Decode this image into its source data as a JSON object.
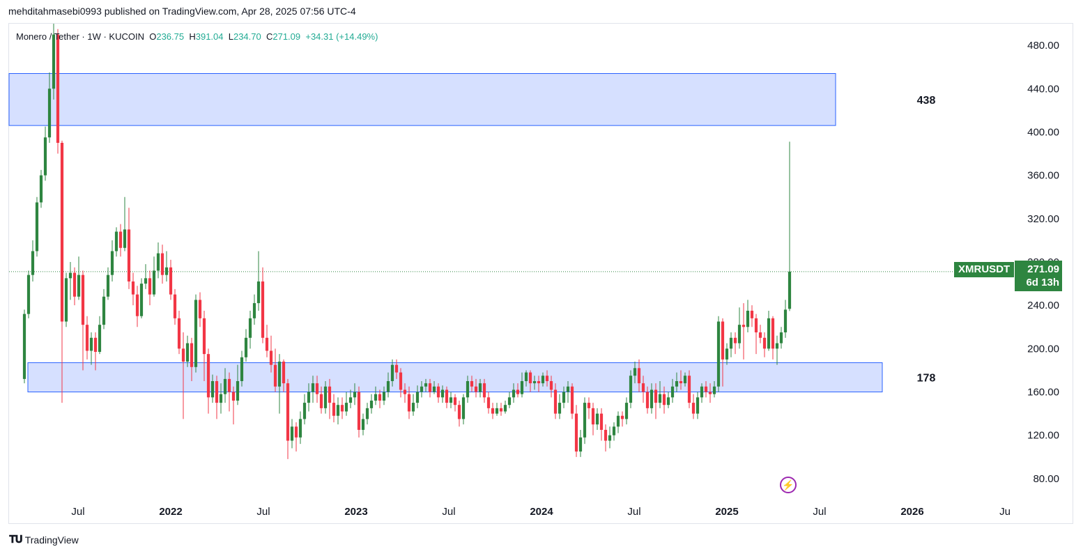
{
  "header": {
    "published": "mehditahmasebi0993 published on TradingView.com, Apr 28, 2025 07:56 UTC-4"
  },
  "legend": {
    "title": "Monero / Tether · 1W · KUCOIN",
    "o_label": "O",
    "o_value": "236.75",
    "h_label": "H",
    "h_value": "391.04",
    "l_label": "L",
    "l_value": "234.70",
    "c_label": "C",
    "c_value": "271.09",
    "change": "+34.31 (+14.49%)"
  },
  "price_tag": {
    "symbol": "XMRUSDT",
    "price": "271.09",
    "countdown": "6d 13h"
  },
  "footer": {
    "brand": "TradingView",
    "logo": "tv-logo-icon"
  },
  "colors": {
    "up": "#2e8540",
    "down": "#f23645",
    "zone_fill": "#d6e0ff",
    "zone_border": "#2962ff",
    "price_line": "#2e8540",
    "alert": "#9c27b0"
  },
  "icons": {
    "alert": "lightning-bolt-icon"
  },
  "chart_data": {
    "type": "candlestick",
    "ylim": [
      60,
      500
    ],
    "y_ticks": [
      "480.00",
      "440.00",
      "400.00",
      "360.00",
      "320.00",
      "280.00",
      "240.00",
      "200.00",
      "160.00",
      "120.00",
      "80.00"
    ],
    "x_ticks": [
      {
        "label": "Jul",
        "year": false,
        "date": "2021-07"
      },
      {
        "label": "2022",
        "year": true,
        "date": "2022-01"
      },
      {
        "label": "Jul",
        "year": false,
        "date": "2022-07"
      },
      {
        "label": "2023",
        "year": true,
        "date": "2023-01"
      },
      {
        "label": "Jul",
        "year": false,
        "date": "2023-07"
      },
      {
        "label": "2024",
        "year": true,
        "date": "2024-01"
      },
      {
        "label": "Jul",
        "year": false,
        "date": "2024-07"
      },
      {
        "label": "2025",
        "year": true,
        "date": "2025-01"
      },
      {
        "label": "Jul",
        "year": false,
        "date": "2025-07"
      },
      {
        "label": "2026",
        "year": true,
        "date": "2026-01"
      },
      {
        "label": "Ju",
        "year": false,
        "date": "2026-07"
      }
    ],
    "zones": [
      {
        "label": "438",
        "low": 406,
        "high": 454,
        "start": "2021-03",
        "end": "2025-10"
      },
      {
        "label": "178",
        "low": 160,
        "high": 187,
        "start": "2021-04",
        "end": "2025-11"
      }
    ],
    "last_price": 271.09,
    "candles": [
      [
        172,
        232,
        168,
        236
      ],
      [
        232,
        268,
        228,
        272
      ],
      [
        268,
        290,
        262,
        300
      ],
      [
        290,
        335,
        285,
        340
      ],
      [
        335,
        360,
        330,
        365
      ],
      [
        360,
        395,
        355,
        405
      ],
      [
        395,
        440,
        390,
        455
      ],
      [
        440,
        490,
        430,
        500
      ],
      [
        490,
        390,
        380,
        495
      ],
      [
        390,
        225,
        150,
        392
      ],
      [
        225,
        265,
        220,
        270
      ],
      [
        265,
        270,
        245,
        280
      ],
      [
        270,
        248,
        240,
        275
      ],
      [
        248,
        268,
        245,
        285
      ],
      [
        268,
        222,
        180,
        272
      ],
      [
        222,
        198,
        190,
        230
      ],
      [
        198,
        210,
        185,
        215
      ],
      [
        210,
        197,
        180,
        215
      ],
      [
        197,
        222,
        195,
        230
      ],
      [
        222,
        248,
        218,
        255
      ],
      [
        248,
        268,
        245,
        275
      ],
      [
        268,
        290,
        262,
        300
      ],
      [
        290,
        308,
        285,
        312
      ],
      [
        308,
        293,
        285,
        315
      ],
      [
        293,
        310,
        290,
        340
      ],
      [
        310,
        262,
        255,
        330
      ],
      [
        262,
        250,
        240,
        270
      ],
      [
        250,
        230,
        220,
        258
      ],
      [
        230,
        260,
        228,
        265
      ],
      [
        260,
        265,
        255,
        278
      ],
      [
        265,
        250,
        240,
        272
      ],
      [
        250,
        272,
        248,
        285
      ],
      [
        272,
        288,
        265,
        298
      ],
      [
        288,
        268,
        260,
        296
      ],
      [
        268,
        275,
        262,
        290
      ],
      [
        275,
        250,
        245,
        282
      ],
      [
        250,
        228,
        222,
        255
      ],
      [
        228,
        200,
        195,
        235
      ],
      [
        200,
        188,
        135,
        215
      ],
      [
        188,
        205,
        183,
        212
      ],
      [
        205,
        183,
        170,
        210
      ],
      [
        183,
        245,
        178,
        250
      ],
      [
        245,
        228,
        220,
        252
      ],
      [
        228,
        195,
        170,
        235
      ],
      [
        195,
        155,
        140,
        200
      ],
      [
        155,
        170,
        150,
        176
      ],
      [
        170,
        150,
        135,
        175
      ],
      [
        150,
        158,
        140,
        168
      ],
      [
        158,
        172,
        150,
        182
      ],
      [
        172,
        160,
        142,
        178
      ],
      [
        160,
        152,
        130,
        165
      ],
      [
        152,
        170,
        148,
        185
      ],
      [
        170,
        192,
        165,
        198
      ],
      [
        192,
        210,
        188,
        218
      ],
      [
        210,
        228,
        200,
        235
      ],
      [
        228,
        242,
        222,
        250
      ],
      [
        242,
        262,
        235,
        290
      ],
      [
        262,
        210,
        205,
        275
      ],
      [
        210,
        198,
        192,
        222
      ],
      [
        198,
        185,
        178,
        212
      ],
      [
        185,
        165,
        160,
        200
      ],
      [
        165,
        188,
        140,
        195
      ],
      [
        188,
        168,
        160,
        190
      ],
      [
        168,
        115,
        98,
        172
      ],
      [
        115,
        128,
        108,
        135
      ],
      [
        128,
        118,
        105,
        132
      ],
      [
        118,
        135,
        112,
        142
      ],
      [
        135,
        150,
        130,
        158
      ],
      [
        150,
        160,
        142,
        168
      ],
      [
        160,
        168,
        150,
        175
      ],
      [
        168,
        158,
        150,
        175
      ],
      [
        158,
        145,
        140,
        165
      ],
      [
        145,
        165,
        140,
        170
      ],
      [
        165,
        150,
        135,
        172
      ],
      [
        150,
        138,
        132,
        158
      ],
      [
        138,
        148,
        130,
        155
      ],
      [
        148,
        142,
        135,
        155
      ],
      [
        142,
        150,
        138,
        160
      ],
      [
        150,
        155,
        145,
        162
      ],
      [
        155,
        160,
        148,
        168
      ],
      [
        160,
        125,
        118,
        165
      ],
      [
        125,
        135,
        120,
        140
      ],
      [
        135,
        145,
        130,
        150
      ],
      [
        145,
        152,
        140,
        158
      ],
      [
        152,
        158,
        148,
        165
      ],
      [
        158,
        152,
        145,
        162
      ],
      [
        152,
        160,
        148,
        165
      ],
      [
        160,
        170,
        155,
        178
      ],
      [
        170,
        185,
        165,
        190
      ],
      [
        185,
        178,
        172,
        190
      ],
      [
        178,
        162,
        155,
        182
      ],
      [
        162,
        158,
        150,
        168
      ],
      [
        158,
        142,
        135,
        165
      ],
      [
        142,
        150,
        138,
        158
      ],
      [
        150,
        160,
        145,
        166
      ],
      [
        160,
        165,
        155,
        170
      ],
      [
        165,
        168,
        160,
        172
      ],
      [
        168,
        160,
        155,
        172
      ],
      [
        160,
        165,
        158,
        170
      ],
      [
        165,
        155,
        150,
        168
      ],
      [
        155,
        162,
        150,
        166
      ],
      [
        162,
        150,
        145,
        165
      ],
      [
        150,
        155,
        145,
        160
      ],
      [
        155,
        148,
        142,
        158
      ],
      [
        148,
        135,
        128,
        152
      ],
      [
        135,
        155,
        130,
        158
      ],
      [
        155,
        170,
        150,
        175
      ],
      [
        170,
        165,
        160,
        175
      ],
      [
        165,
        160,
        155,
        172
      ],
      [
        160,
        168,
        155,
        172
      ],
      [
        168,
        155,
        150,
        172
      ],
      [
        155,
        145,
        140,
        160
      ],
      [
        145,
        140,
        135,
        150
      ],
      [
        140,
        145,
        138,
        150
      ],
      [
        145,
        142,
        138,
        150
      ],
      [
        142,
        148,
        140,
        152
      ],
      [
        148,
        155,
        145,
        160
      ],
      [
        155,
        162,
        150,
        168
      ],
      [
        162,
        158,
        155,
        168
      ],
      [
        158,
        170,
        155,
        178
      ],
      [
        170,
        178,
        165,
        180
      ],
      [
        178,
        168,
        160,
        180
      ],
      [
        168,
        170,
        162,
        175
      ],
      [
        170,
        168,
        160,
        175
      ],
      [
        168,
        175,
        165,
        178
      ],
      [
        175,
        170,
        165,
        180
      ],
      [
        170,
        162,
        155,
        175
      ],
      [
        162,
        140,
        135,
        168
      ],
      [
        140,
        150,
        135,
        158
      ],
      [
        150,
        160,
        145,
        165
      ],
      [
        160,
        165,
        150,
        170
      ],
      [
        165,
        140,
        135,
        168
      ],
      [
        140,
        105,
        100,
        148
      ],
      [
        105,
        118,
        100,
        125
      ],
      [
        118,
        150,
        112,
        155
      ],
      [
        150,
        145,
        135,
        155
      ],
      [
        145,
        130,
        120,
        150
      ],
      [
        130,
        140,
        125,
        145
      ],
      [
        140,
        125,
        115,
        145
      ],
      [
        125,
        115,
        105,
        130
      ],
      [
        115,
        120,
        108,
        128
      ],
      [
        120,
        128,
        115,
        132
      ],
      [
        128,
        138,
        122,
        142
      ],
      [
        138,
        135,
        128,
        142
      ],
      [
        135,
        150,
        130,
        155
      ],
      [
        150,
        175,
        145,
        180
      ],
      [
        175,
        182,
        168,
        188
      ],
      [
        182,
        168,
        160,
        190
      ],
      [
        168,
        160,
        150,
        175
      ],
      [
        160,
        145,
        140,
        165
      ],
      [
        145,
        162,
        140,
        168
      ],
      [
        162,
        150,
        135,
        168
      ],
      [
        150,
        158,
        145,
        170
      ],
      [
        158,
        148,
        140,
        165
      ],
      [
        148,
        155,
        145,
        160
      ],
      [
        155,
        165,
        150,
        172
      ],
      [
        165,
        170,
        160,
        178
      ],
      [
        170,
        168,
        162,
        180
      ],
      [
        168,
        175,
        165,
        178
      ],
      [
        175,
        150,
        145,
        180
      ],
      [
        150,
        140,
        135,
        158
      ],
      [
        140,
        155,
        135,
        160
      ],
      [
        155,
        165,
        150,
        168
      ],
      [
        165,
        160,
        155,
        170
      ],
      [
        160,
        158,
        150,
        168
      ],
      [
        158,
        165,
        155,
        170
      ],
      [
        165,
        225,
        160,
        230
      ],
      [
        225,
        190,
        165,
        228
      ],
      [
        190,
        200,
        185,
        205
      ],
      [
        200,
        210,
        192,
        215
      ],
      [
        210,
        205,
        195,
        215
      ],
      [
        205,
        222,
        200,
        238
      ],
      [
        222,
        220,
        190,
        242
      ],
      [
        220,
        235,
        215,
        245
      ],
      [
        235,
        228,
        220,
        240
      ],
      [
        228,
        215,
        195,
        232
      ],
      [
        215,
        210,
        205,
        222
      ],
      [
        210,
        200,
        192,
        215
      ],
      [
        200,
        228,
        198,
        235
      ],
      [
        228,
        200,
        190,
        230
      ],
      [
        200,
        205,
        185,
        212
      ],
      [
        205,
        215,
        200,
        220
      ],
      [
        215,
        236,
        210,
        245
      ],
      [
        236.75,
        271.09,
        234.7,
        391.04
      ]
    ]
  }
}
